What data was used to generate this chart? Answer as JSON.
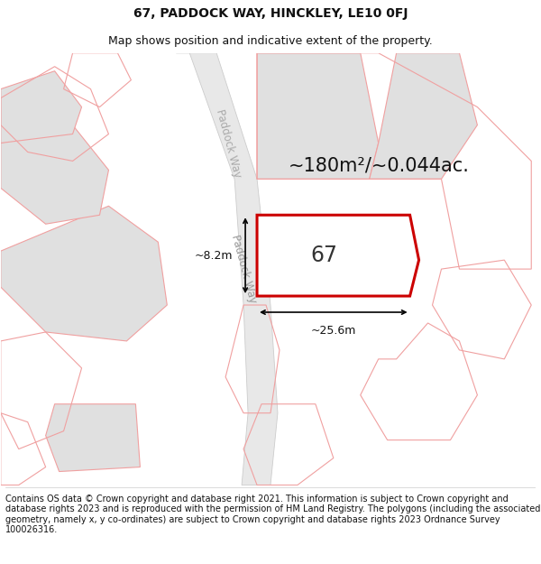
{
  "title_line1": "67, PADDOCK WAY, HINCKLEY, LE10 0FJ",
  "title_line2": "Map shows position and indicative extent of the property.",
  "footer_text": "Contains OS data © Crown copyright and database right 2021. This information is subject to Crown copyright and database rights 2023 and is reproduced with the permission of HM Land Registry. The polygons (including the associated geometry, namely x, y co-ordinates) are subject to Crown copyright and database rights 2023 Ordnance Survey 100026316.",
  "background_color": "#ffffff",
  "map_bg_color": "#ffffff",
  "road_fill": "#e8e8e8",
  "road_edge": "#cccccc",
  "building_fill": "#e0e0e0",
  "building_stroke": "#c8c8c8",
  "highlight_fill": "#ffffff",
  "highlight_stroke": "#cc0000",
  "other_polygon_stroke": "#f0a0a0",
  "measurement_color": "#000000",
  "area_text": "~180m²/~0.044ac.",
  "property_label": "67",
  "width_label": "~25.6m",
  "height_label": "~8.2m",
  "road_label": "Paddock Way",
  "title_fontsize": 10,
  "subtitle_fontsize": 9,
  "footer_fontsize": 7,
  "area_fontsize": 15,
  "label_fontsize": 17,
  "measurement_fontsize": 9,
  "road_label_fontsize": 8.5
}
